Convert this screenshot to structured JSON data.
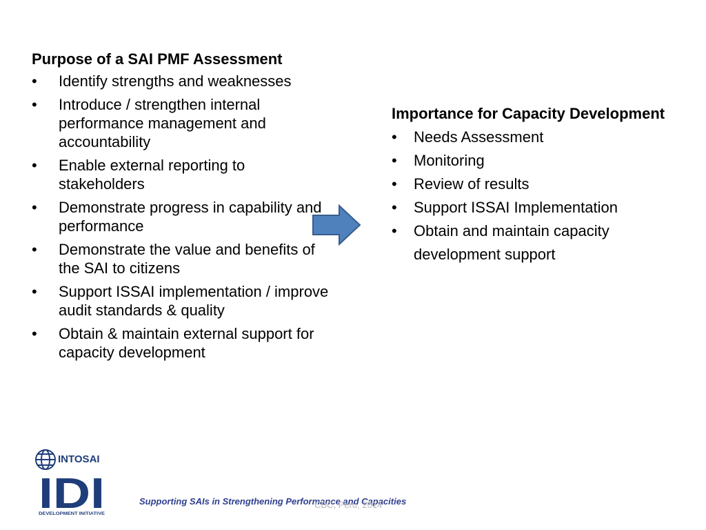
{
  "left_section": {
    "heading": "Purpose of a SAI PMF Assessment",
    "items": [
      "Identify strengths and weaknesses",
      "Introduce / strengthen internal performance management and accountability",
      "Enable external reporting to stakeholders",
      "Demonstrate progress in capability and performance",
      "Demonstrate the value and benefits of the SAI to citizens",
      "Support ISSAI implementation / improve audit standards & quality",
      "Obtain & maintain external support for capacity development"
    ]
  },
  "right_section": {
    "heading": "Importance for Capacity Development",
    "items": [
      "Needs Assessment",
      "Monitoring",
      "Review of results",
      "Support ISSAI Implementation",
      "Obtain and maintain capacity development support"
    ]
  },
  "footer": {
    "logo_top_text": "INTOSAI",
    "logo_main_text": "IDI",
    "logo_bottom_text": "DEVELOPMENT INITIATIVE",
    "tagline": "Supporting SAIs in Strengthening Performance and Capacities",
    "note": "CBC, Peru, 2014"
  },
  "colors": {
    "arrow_fill": "#4f81bd",
    "arrow_stroke": "#385d8a",
    "logo_blue": "#1f3d7a",
    "tagline": "#2e3f8f"
  },
  "icons": {
    "arrow": "right-arrow-icon",
    "logo": "idi-logo-icon"
  }
}
